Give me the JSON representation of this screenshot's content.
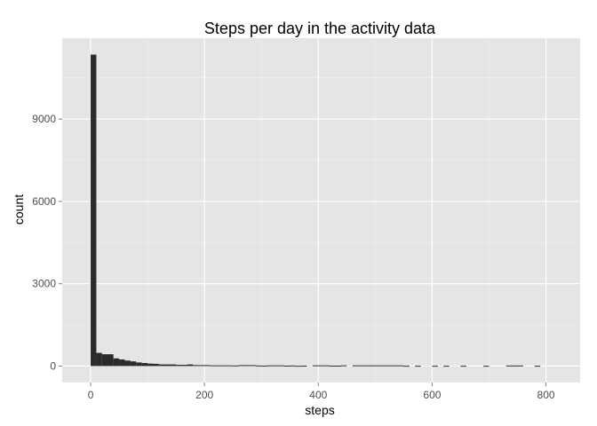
{
  "chart_data": {
    "type": "bar",
    "title": "Steps per day in the activity data",
    "xlabel": "steps",
    "ylabel": "count",
    "xlim": [
      -50,
      860
    ],
    "ylim": [
      -600,
      11950
    ],
    "x_ticks": [
      0,
      200,
      400,
      600,
      800
    ],
    "y_ticks": [
      0,
      3000,
      6000,
      9000
    ],
    "grid": true,
    "colors": {
      "panel": "#e5e5e5",
      "grid_major": "#ffffff",
      "grid_minor": "#f2f2f2",
      "bar": "#2b2b2b"
    },
    "bins": [
      {
        "x0": 0,
        "x1": 10,
        "count": 11350
      },
      {
        "x0": 10,
        "x1": 20,
        "count": 480
      },
      {
        "x0": 20,
        "x1": 40,
        "count": 430
      },
      {
        "x0": 40,
        "x1": 50,
        "count": 280
      },
      {
        "x0": 50,
        "x1": 60,
        "count": 240
      },
      {
        "x0": 60,
        "x1": 70,
        "count": 200
      },
      {
        "x0": 70,
        "x1": 80,
        "count": 170
      },
      {
        "x0": 80,
        "x1": 90,
        "count": 130
      },
      {
        "x0": 90,
        "x1": 100,
        "count": 110
      },
      {
        "x0": 100,
        "x1": 110,
        "count": 90
      },
      {
        "x0": 110,
        "x1": 120,
        "count": 80
      },
      {
        "x0": 120,
        "x1": 150,
        "count": 60
      },
      {
        "x0": 150,
        "x1": 170,
        "count": 45
      },
      {
        "x0": 170,
        "x1": 180,
        "count": 60
      },
      {
        "x0": 180,
        "x1": 210,
        "count": 35
      },
      {
        "x0": 210,
        "x1": 250,
        "count": 25
      },
      {
        "x0": 250,
        "x1": 260,
        "count": 20
      },
      {
        "x0": 260,
        "x1": 290,
        "count": 35
      },
      {
        "x0": 290,
        "x1": 300,
        "count": 20
      },
      {
        "x0": 300,
        "x1": 310,
        "count": 15
      },
      {
        "x0": 310,
        "x1": 340,
        "count": 25
      },
      {
        "x0": 340,
        "x1": 350,
        "count": 15
      },
      {
        "x0": 350,
        "x1": 360,
        "count": 20
      },
      {
        "x0": 360,
        "x1": 370,
        "count": 10
      },
      {
        "x0": 370,
        "x1": 380,
        "count": 15
      },
      {
        "x0": 390,
        "x1": 420,
        "count": 25
      },
      {
        "x0": 420,
        "x1": 440,
        "count": 15
      },
      {
        "x0": 440,
        "x1": 450,
        "count": 25
      },
      {
        "x0": 460,
        "x1": 550,
        "count": 25
      },
      {
        "x0": 550,
        "x1": 560,
        "count": 10
      },
      {
        "x0": 570,
        "x1": 580,
        "count": 10
      },
      {
        "x0": 600,
        "x1": 610,
        "count": 10
      },
      {
        "x0": 620,
        "x1": 630,
        "count": 10
      },
      {
        "x0": 650,
        "x1": 660,
        "count": 10
      },
      {
        "x0": 690,
        "x1": 700,
        "count": 10
      },
      {
        "x0": 730,
        "x1": 760,
        "count": 20
      },
      {
        "x0": 780,
        "x1": 790,
        "count": 10
      }
    ]
  }
}
